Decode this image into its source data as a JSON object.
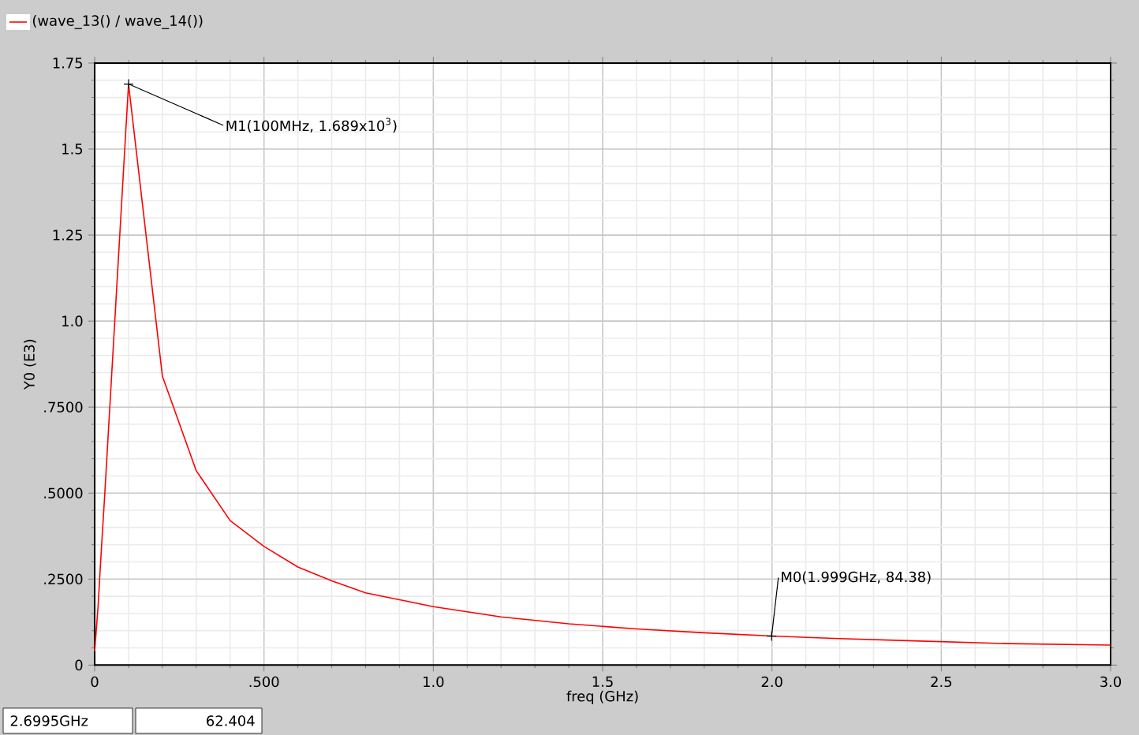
{
  "chart_data": {
    "type": "line",
    "xlabel": "freq (GHz)",
    "ylabel": "Y0 (E3)",
    "x": [
      0,
      0.01,
      0.02,
      0.03,
      0.04,
      0.05,
      0.06,
      0.07,
      0.08,
      0.09,
      0.1,
      0.2,
      0.3,
      0.4,
      0.5,
      0.6,
      0.7,
      0.8,
      0.9,
      1.0,
      1.2,
      1.4,
      1.6,
      1.8,
      2.0,
      2.2,
      2.4,
      2.6995,
      3.0
    ],
    "series": [
      {
        "name": "(wave_13() / wave_14())",
        "color": "#ff0000",
        "values": [
          0.04,
          0.17,
          0.34,
          0.5,
          0.67,
          0.84,
          1.01,
          1.18,
          1.35,
          1.52,
          1.689,
          0.84,
          0.565,
          0.42,
          0.345,
          0.285,
          0.245,
          0.21,
          0.19,
          0.17,
          0.14,
          0.12,
          0.105,
          0.094,
          0.0844,
          0.077,
          0.071,
          0.0624,
          0.058
        ]
      }
    ],
    "xlim": [
      0,
      3.0
    ],
    "ylim": [
      0,
      1.75
    ],
    "xticks": [
      0,
      {
        "value": 0.5,
        "label": ".500"
      },
      {
        "value": 1.0,
        "label": "1.0"
      },
      1.5,
      {
        "value": 2.0,
        "label": "2.0"
      },
      2.5,
      {
        "value": 3.0,
        "label": "3.0"
      }
    ],
    "yticks": [
      0,
      {
        "value": 0.25,
        "label": ".2500"
      },
      {
        "value": 0.5,
        "label": ".5000"
      },
      {
        "value": 0.75,
        "label": ".7500"
      },
      {
        "value": 1.0,
        "label": "1.0"
      },
      1.25,
      1.5,
      1.75
    ],
    "annotations": [
      {
        "text": "M1(100MHz, 1.689x10$^{3}$)",
        "x": 0.1,
        "y": 1.689
      },
      {
        "text": "M0(1.999GHz, 84.38)",
        "x": 1.999,
        "y": 0.08438
      },
      "2.6995GHz",
      "62.404"
    ],
    "grid": true,
    "legend": "top left",
    "marker": "none",
    "line_style": "solid"
  }
}
